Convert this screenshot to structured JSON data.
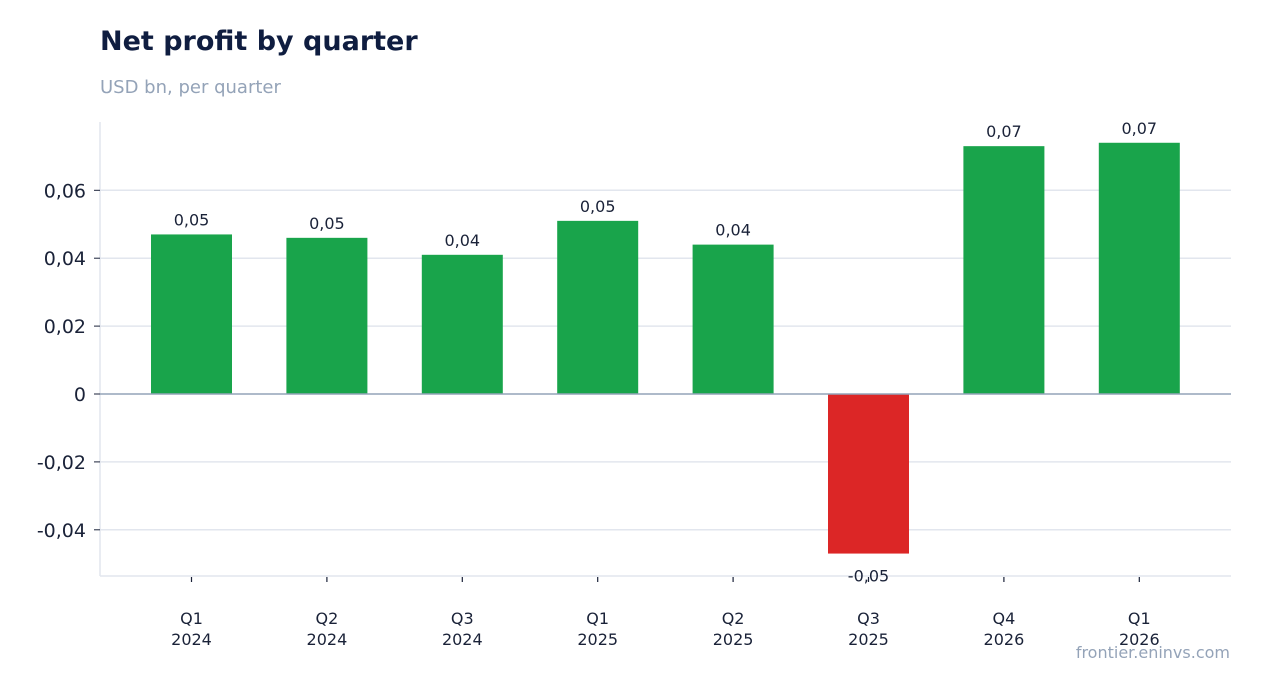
{
  "header": {
    "title": "Net profit by quarter",
    "subtitle": "USD bn, per quarter"
  },
  "footer": {
    "source": "frontier.eninvs.com"
  },
  "colors": {
    "positive": "#19a44b",
    "negative": "#dc2626",
    "gridline": "#e2e6ee",
    "zero_line": "#94a3b8",
    "axis": "#e2e6ee"
  },
  "chart_data": {
    "type": "bar",
    "title": "Net profit by quarter",
    "subtitle": "USD bn, per quarter",
    "xlabel": "",
    "ylabel": "",
    "categories": [
      [
        "Q1",
        "2024"
      ],
      [
        "Q2",
        "2024"
      ],
      [
        "Q3",
        "2024"
      ],
      [
        "Q1",
        "2025"
      ],
      [
        "Q2",
        "2025"
      ],
      [
        "Q3",
        "2025"
      ],
      [
        "Q4",
        "2026"
      ],
      [
        "Q1",
        "2026"
      ]
    ],
    "values": [
      0.047,
      0.046,
      0.041,
      0.051,
      0.044,
      -0.047,
      0.073,
      0.074
    ],
    "data_labels": [
      "0,05",
      "0,05",
      "0,04",
      "0,05",
      "0,04",
      "-0,05",
      "0,07",
      "0,07"
    ],
    "y_ticks": [
      -0.04,
      -0.02,
      0,
      0.02,
      0.04,
      0.06
    ],
    "y_tick_labels": [
      "-0,04",
      "-0,02",
      "0",
      "0,02",
      "0,04",
      "0,06"
    ],
    "ylim": [
      -0.0535,
      0.08
    ],
    "grid": true,
    "legend": "none"
  }
}
